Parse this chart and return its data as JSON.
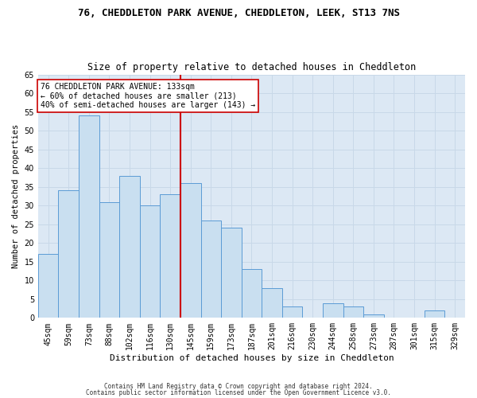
{
  "title": "76, CHEDDLETON PARK AVENUE, CHEDDLETON, LEEK, ST13 7NS",
  "subtitle": "Size of property relative to detached houses in Cheddleton",
  "xlabel": "Distribution of detached houses by size in Cheddleton",
  "ylabel": "Number of detached properties",
  "categories": [
    "45sqm",
    "59sqm",
    "73sqm",
    "88sqm",
    "102sqm",
    "116sqm",
    "130sqm",
    "145sqm",
    "159sqm",
    "173sqm",
    "187sqm",
    "201sqm",
    "216sqm",
    "230sqm",
    "244sqm",
    "258sqm",
    "273sqm",
    "287sqm",
    "301sqm",
    "315sqm",
    "329sqm"
  ],
  "values": [
    17,
    34,
    54,
    31,
    38,
    30,
    33,
    36,
    26,
    24,
    13,
    8,
    3,
    0,
    4,
    3,
    1,
    0,
    0,
    2,
    0
  ],
  "bar_color": "#c9dff0",
  "bar_edge_color": "#5b9bd5",
  "vline_color": "#cc0000",
  "annotation_text": "76 CHEDDLETON PARK AVENUE: 133sqm\n← 60% of detached houses are smaller (213)\n40% of semi-detached houses are larger (143) →",
  "annotation_box_color": "#ffffff",
  "annotation_box_edge": "#cc0000",
  "ylim": [
    0,
    65
  ],
  "yticks": [
    0,
    5,
    10,
    15,
    20,
    25,
    30,
    35,
    40,
    45,
    50,
    55,
    60,
    65
  ],
  "grid_color": "#c8d8e8",
  "background_color": "#dce8f4",
  "footer1": "Contains HM Land Registry data © Crown copyright and database right 2024.",
  "footer2": "Contains public sector information licensed under the Open Government Licence v3.0.",
  "title_fontsize": 9,
  "subtitle_fontsize": 8.5,
  "xlabel_fontsize": 8,
  "ylabel_fontsize": 7.5,
  "tick_fontsize": 7,
  "annot_fontsize": 7,
  "footer_fontsize": 5.5
}
